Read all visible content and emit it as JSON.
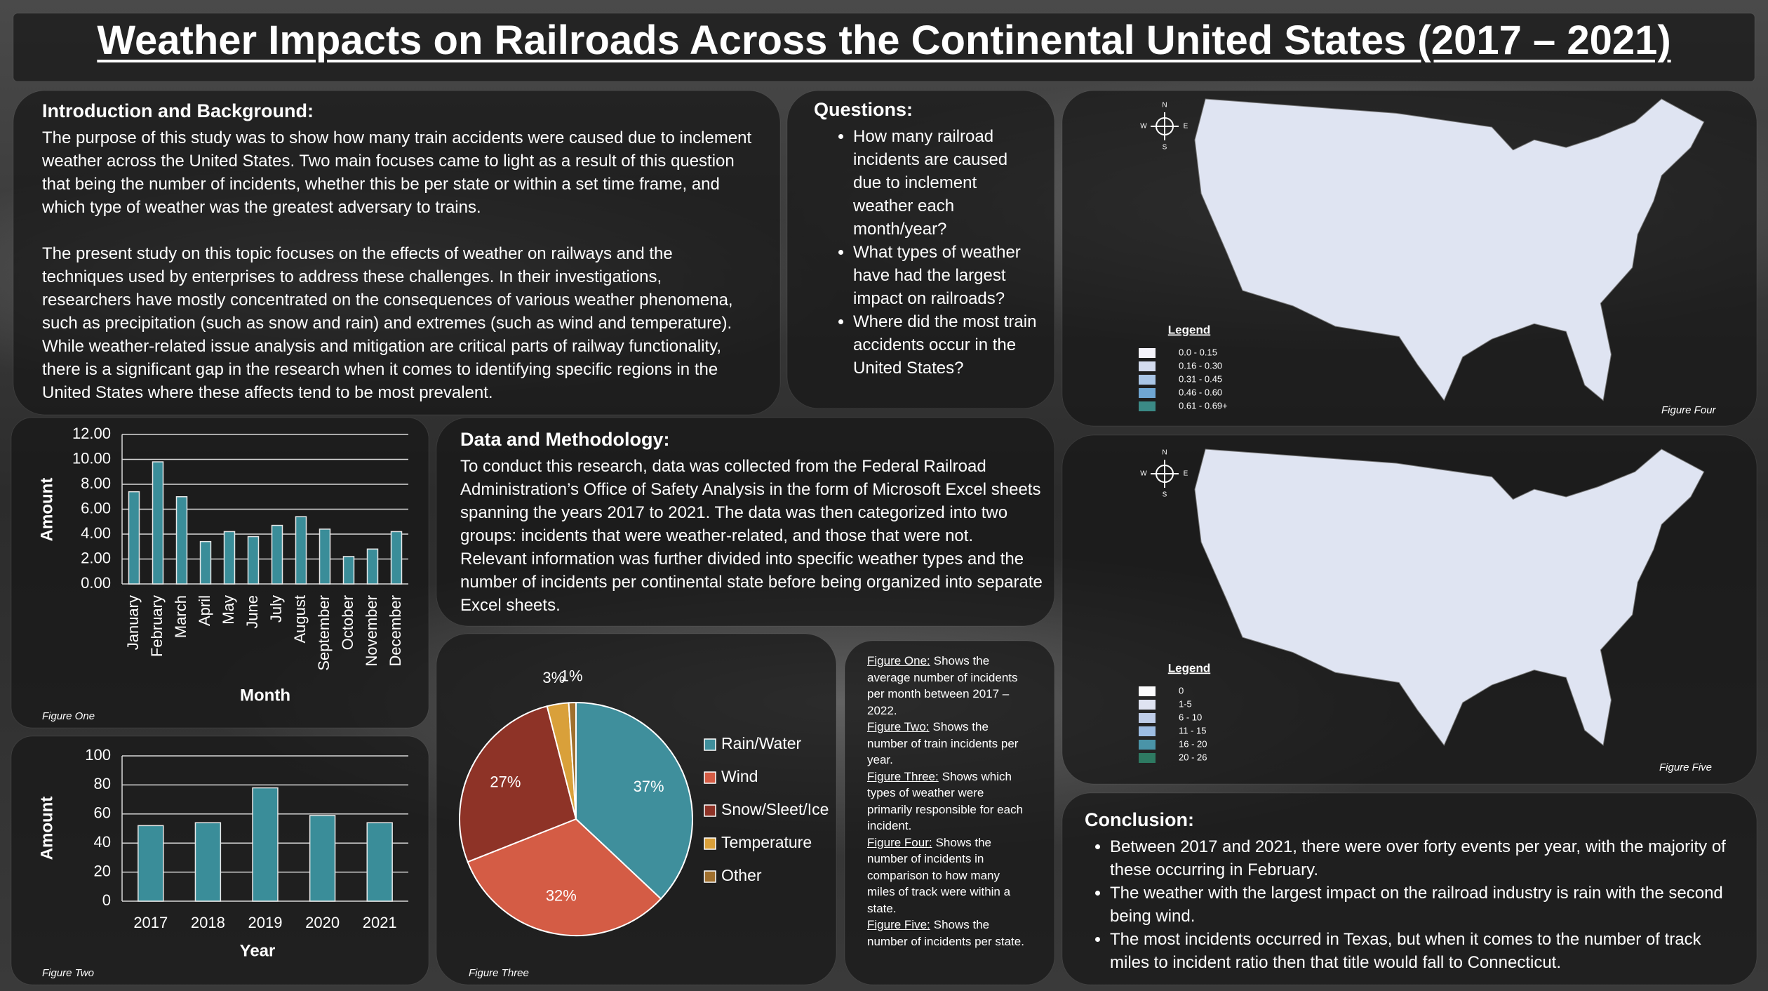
{
  "title": "Weather Impacts on Railroads Across the Continental United States (2017 – 2021)",
  "intro": {
    "heading": "Introduction and Background:",
    "paragraphs": [
      "The purpose of this study was to show how many train accidents were caused due to inclement weather across the United States. Two main focuses came to light as a result of this question that being the number of incidents, whether this be per state or within a set time frame, and which type of weather was the greatest adversary to trains.",
      "The present study on this topic focuses on the effects of weather on railways and the techniques used by enterprises to address these challenges. In their investigations, researchers have mostly concentrated on the consequences of various weather phenomena, such as precipitation (such as snow and rain) and extremes (such as wind and temperature). While weather-related issue analysis and mitigation are critical parts of railway functionality, there is a significant gap in the research when it comes to identifying specific regions in the United States where these affects tend to be most prevalent."
    ]
  },
  "questions": {
    "heading": "Questions:",
    "items": [
      "How many railroad incidents are caused due to inclement weather each month/year?",
      "What types of weather have had the largest impact on railroads?",
      "Where did the most train accidents occur in the United States?"
    ]
  },
  "methodology": {
    "heading": "Data and Methodology:",
    "text": "To conduct this research, data was collected from the Federal Railroad Administration’s Office of Safety Analysis in the form of Microsoft Excel sheets spanning the years 2017 to 2021. The data was then categorized into two groups: incidents that were weather-related, and those that were not. Relevant information was further divided into specific weather types and the number of incidents per continental state before being organized into separate Excel sheets."
  },
  "figure_notes": [
    {
      "label": "Figure One:",
      "text": "Shows the average number of incidents per month between 2017 – 2022."
    },
    {
      "label": "Figure Two:",
      "text": "Shows the number of train incidents per year."
    },
    {
      "label": "Figure Three:",
      "text": "Shows which types of weather were primarily responsible for each incident."
    },
    {
      "label": "Figure Four:",
      "text": "Shows the number of incidents in comparison to how many miles of track were within a state."
    },
    {
      "label": "Figure Five:",
      "text": "Shows the number of incidents per state."
    }
  ],
  "maps": [
    {
      "caption": "Figure Four",
      "compass": [
        "N",
        "E",
        "S",
        "W"
      ],
      "legend": {
        "title": "Legend",
        "items": [
          {
            "label": "0.0 - 0.15",
            "color": "#f4f3fa"
          },
          {
            "label": "0.16 - 0.30",
            "color": "#d3dbee"
          },
          {
            "label": "0.31 - 0.45",
            "color": "#a9c5e6"
          },
          {
            "label": "0.46 - 0.60",
            "color": "#6fa6d3"
          },
          {
            "label": "0.61 - 0.69+",
            "color": "#3b8a86"
          }
        ]
      }
    },
    {
      "caption": "Figure Five",
      "compass": [
        "N",
        "E",
        "S",
        "W"
      ],
      "legend": {
        "title": "Legend",
        "items": [
          {
            "label": "0",
            "color": "#fbfbfd"
          },
          {
            "label": "1-5",
            "color": "#dfe3f1"
          },
          {
            "label": "6 - 10",
            "color": "#bfcde8"
          },
          {
            "label": "11 - 15",
            "color": "#9dbde3"
          },
          {
            "label": "16 - 20",
            "color": "#4a94a8"
          },
          {
            "label": "20 - 26",
            "color": "#2e7a62"
          }
        ]
      }
    }
  ],
  "conclusion": {
    "heading": "Conclusion:",
    "items": [
      "Between 2017 and 2021, there were over forty events per year, with the majority of these occurring in February.",
      "The weather with the largest impact on the railroad industry is rain with the second being wind.",
      "The most incidents occurred in Texas, but when it comes to the number of track miles to incident ratio then that title would fall to Connecticut."
    ]
  },
  "chart_data": [
    {
      "type": "bar",
      "caption": "Figure One",
      "x_label": "Month",
      "y_label": "Amount",
      "color": "#3a8d99",
      "grid": true,
      "categories": [
        "January",
        "February",
        "March",
        "April",
        "May",
        "June",
        "July",
        "August",
        "September",
        "October",
        "November",
        "December"
      ],
      "values": [
        7.4,
        9.8,
        7.0,
        3.4,
        4.2,
        3.8,
        4.7,
        5.4,
        4.4,
        2.2,
        2.8,
        4.2
      ],
      "ylim": [
        0,
        12
      ],
      "yticks": [
        {
          "value": 0,
          "label": "0.00"
        },
        {
          "value": 2,
          "label": "2.00"
        },
        {
          "value": 4,
          "label": "4.00"
        },
        {
          "value": 6,
          "label": "6.00"
        },
        {
          "value": 8,
          "label": "8.00"
        },
        {
          "value": 10,
          "label": "10.00"
        },
        {
          "value": 12,
          "label": "12.00"
        }
      ]
    },
    {
      "type": "bar",
      "caption": "Figure Two",
      "x_label": "Year",
      "y_label": "Amount",
      "color": "#3a8d99",
      "grid": true,
      "categories": [
        "2017",
        "2018",
        "2019",
        "2020",
        "2021"
      ],
      "values": [
        52,
        54,
        78,
        59,
        54
      ],
      "ylim": [
        0,
        100
      ],
      "yticks": [
        0,
        20,
        40,
        60,
        80,
        100
      ]
    },
    {
      "type": "pie",
      "caption": "Figure Three",
      "categories": [
        "Rain/Water",
        "Wind",
        "Snow/Sleet/Ice",
        "Temperature",
        "Other"
      ],
      "values": [
        37,
        32,
        27,
        3,
        1
      ],
      "value_labels": [
        "37%",
        "32%",
        "27%",
        "3%",
        "1%"
      ],
      "colors": [
        "#3f8f9c",
        "#d45c45",
        "#8e3327",
        "#d9a03a",
        "#a0702e"
      ]
    }
  ]
}
